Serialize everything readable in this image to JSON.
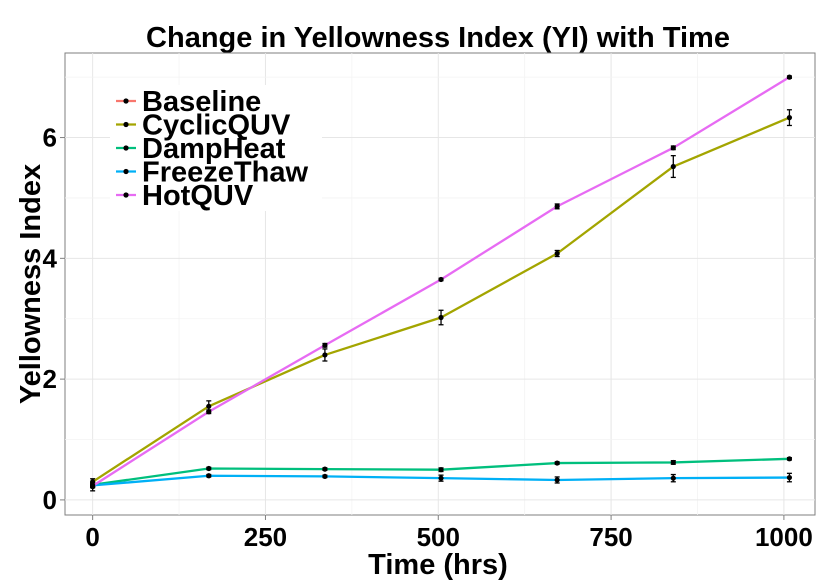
{
  "chart_data": {
    "type": "line",
    "title": "Change in Yellowness Index (YI) with Time",
    "xlabel": "Time (hrs)",
    "ylabel": "Yellowness Index",
    "xlim": [
      -40,
      1045
    ],
    "ylim": [
      -0.25,
      7.4
    ],
    "x_ticks": [
      0,
      250,
      500,
      750,
      1000
    ],
    "y_ticks": [
      0,
      2,
      4,
      6
    ],
    "grid": true,
    "legend_position": "top-left",
    "x": [
      0,
      168,
      336,
      504,
      672,
      840,
      1008
    ],
    "series": [
      {
        "name": "Baseline",
        "color": "#f8766d",
        "x": [
          0
        ],
        "values": [
          0.22
        ],
        "errors": [
          0.07
        ]
      },
      {
        "name": "CyclicQUV",
        "color": "#a3a500",
        "values": [
          0.3,
          1.55,
          2.4,
          3.02,
          4.08,
          5.52,
          6.33
        ],
        "errors": [
          0.05,
          0.09,
          0.1,
          0.12,
          0.05,
          0.18,
          0.13
        ]
      },
      {
        "name": "DampHeat",
        "color": "#00bf7d",
        "values": [
          0.25,
          0.52,
          0.51,
          0.5,
          0.61,
          0.62,
          0.68
        ],
        "errors": [
          0.03,
          0.02,
          0.02,
          0.03,
          0.02,
          0.03,
          0.02
        ]
      },
      {
        "name": "FreezeThaw",
        "color": "#00b0f6",
        "values": [
          0.24,
          0.4,
          0.39,
          0.36,
          0.33,
          0.36,
          0.37
        ],
        "errors": [
          0.03,
          0.02,
          0.02,
          0.05,
          0.05,
          0.06,
          0.07
        ]
      },
      {
        "name": "HotQUV",
        "color": "#e76bf3",
        "values": [
          0.23,
          1.46,
          2.56,
          3.65,
          4.86,
          5.83,
          7.0
        ],
        "errors": [
          0.03,
          0.03,
          0.03,
          0.02,
          0.04,
          0.03,
          0.02
        ]
      }
    ]
  }
}
